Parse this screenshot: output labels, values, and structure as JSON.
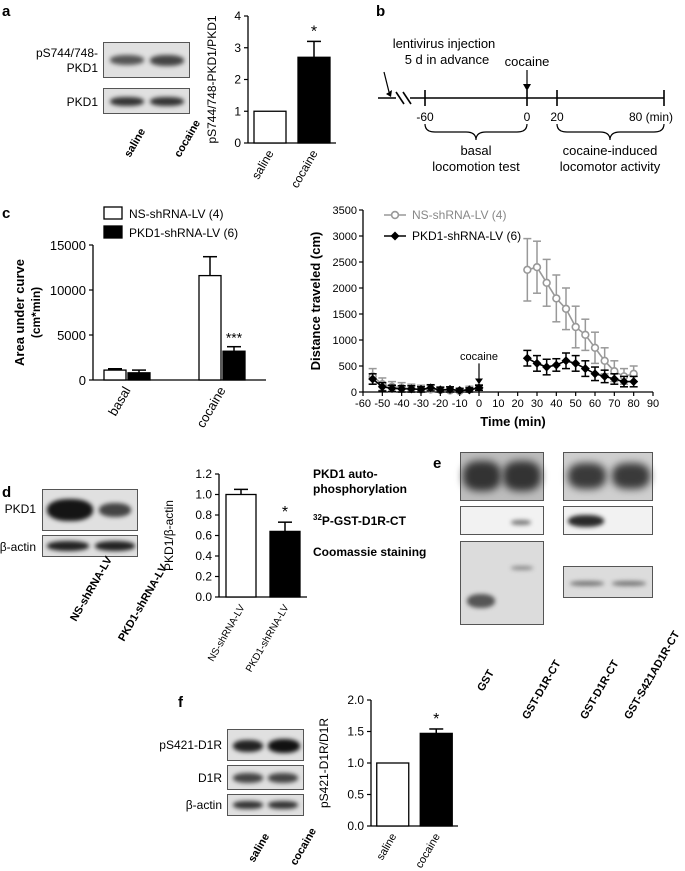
{
  "panels": {
    "a": {
      "label": "a",
      "blot_rows": [
        "pS744/748-\nPKD1",
        "PKD1"
      ],
      "lanes": [
        "saline",
        "cocaine"
      ],
      "chart_data": {
        "type": "bar",
        "categories": [
          "saline",
          "cocaine"
        ],
        "values": [
          1.0,
          2.7
        ],
        "errors": [
          0,
          0.5
        ],
        "ylabel": "pS744/748-PKD1/PKD1",
        "ylim": [
          0,
          4
        ],
        "yticks": [
          0,
          1,
          2,
          3,
          4
        ],
        "significance": [
          "",
          "*"
        ],
        "fills": [
          "#ffffff",
          "#000000"
        ]
      }
    },
    "b": {
      "label": "b",
      "injection": "lentivirus injection\n5 d in advance",
      "cocaine": "cocaine",
      "ticks": [
        "-60",
        "0",
        "20",
        "80 (min)"
      ],
      "phase1": "basal\nlocomotion test",
      "phase2": "cocaine-induced\nlocomotor activity"
    },
    "c": {
      "label": "c",
      "auc_chart": {
        "type": "bar",
        "categories": [
          "basal",
          "cocaine"
        ],
        "series": [
          {
            "name": "NS-shRNA-LV (4)",
            "values": [
              1100,
              11600
            ],
            "errors": [
              150,
              2100
            ],
            "fill": "#ffffff"
          },
          {
            "name": "PKD1-shRNA-LV (6)",
            "values": [
              800,
              3200
            ],
            "errors": [
              300,
              500
            ],
            "fill": "#000000"
          }
        ],
        "ylabel": "Area under curve\n(cm*min)",
        "ylim": [
          0,
          15000
        ],
        "yticks": [
          0,
          5000,
          10000,
          15000
        ],
        "significance": [
          "",
          "***"
        ]
      },
      "time_chart": {
        "type": "line",
        "xlabel": "Time (min)",
        "ylabel": "Distance traveled (cm)",
        "xlim": [
          -60,
          90
        ],
        "ylim": [
          0,
          3500
        ],
        "xticks": [
          -60,
          -50,
          -40,
          -30,
          -20,
          -10,
          0,
          10,
          20,
          30,
          40,
          50,
          60,
          70,
          80,
          90
        ],
        "yticks": [
          0,
          500,
          1000,
          1500,
          2000,
          2500,
          3000,
          3500
        ],
        "annotation": "cocaine",
        "series": [
          {
            "name": "NS-shRNA-LV (4)",
            "color": "#999999",
            "basal_x": [
              -55,
              -50,
              -45,
              -40,
              -35,
              -30,
              -25,
              -20,
              -15,
              -10,
              -5,
              0
            ],
            "basal_y": [
              300,
              150,
              100,
              80,
              60,
              50,
              50,
              40,
              30,
              20,
              50,
              80
            ],
            "basal_err": [
              150,
              120,
              100,
              100,
              90,
              80,
              80,
              60,
              60,
              50,
              60,
              60
            ],
            "x": [
              25,
              30,
              35,
              40,
              45,
              50,
              55,
              60,
              65,
              70,
              75,
              80
            ],
            "y": [
              2350,
              2400,
              2100,
              1800,
              1600,
              1250,
              1100,
              850,
              600,
              400,
              300,
              350
            ],
            "err": [
              600,
              500,
              450,
              450,
              400,
              400,
              300,
              300,
              250,
              200,
              150,
              150
            ]
          },
          {
            "name": "PKD1-shRNA-LV (6)",
            "color": "#000000",
            "basal_x": [
              -55,
              -50,
              -45,
              -40,
              -35,
              -30,
              -25,
              -20,
              -15,
              -10,
              -5,
              0
            ],
            "basal_y": [
              250,
              100,
              70,
              60,
              60,
              50,
              80,
              40,
              50,
              30,
              40,
              80
            ],
            "basal_err": [
              100,
              80,
              60,
              60,
              60,
              50,
              60,
              50,
              50,
              40,
              40,
              50
            ],
            "x": [
              25,
              30,
              35,
              40,
              45,
              50,
              55,
              60,
              65,
              70,
              75,
              80
            ],
            "y": [
              650,
              550,
              480,
              520,
              600,
              550,
              450,
              350,
              300,
              250,
              200,
              200
            ],
            "err": [
              150,
              150,
              150,
              120,
              150,
              150,
              150,
              130,
              120,
              100,
              100,
              100
            ]
          }
        ]
      }
    },
    "d": {
      "label": "d",
      "blot_rows": [
        "PKD1",
        "β-actin"
      ],
      "lanes": [
        "NS-shRNA-LV",
        "PKD1-shRNA-LV"
      ],
      "chart_data": {
        "type": "bar",
        "categories": [
          "NS-shRNA-LV",
          "PKD1-shRNA-LV"
        ],
        "values": [
          1.0,
          0.64
        ],
        "errors": [
          0.05,
          0.09
        ],
        "ylabel": "PKD1/β-actin",
        "ylim": [
          0,
          1.2
        ],
        "yticks": [
          0.0,
          0.2,
          0.4,
          0.6,
          0.8,
          1.0,
          1.2
        ],
        "significance": [
          "",
          "*"
        ],
        "fills": [
          "#ffffff",
          "#000000"
        ]
      }
    },
    "e": {
      "label": "e",
      "row1": "PKD1 auto-\nphosphorylation",
      "row2_sup": "32",
      "row2": "P-GST-D1R-CT",
      "row3": "Coomassie staining",
      "lanes": [
        "GST",
        "GST-D1R-CT",
        "GST-D1R-CT",
        "GST-S421AD1R-CT"
      ]
    },
    "f": {
      "label": "f",
      "blot_rows": [
        "pS421-D1R",
        "D1R",
        "β-actin"
      ],
      "lanes": [
        "saline",
        "cocaine"
      ],
      "chart_data": {
        "type": "bar",
        "categories": [
          "saline",
          "cocaine"
        ],
        "values": [
          1.0,
          1.47
        ],
        "errors": [
          0,
          0.07
        ],
        "ylabel": "pS421-D1R/D1R",
        "ylim": [
          0,
          2.0
        ],
        "yticks": [
          0.0,
          0.5,
          1.0,
          1.5,
          2.0
        ],
        "significance": [
          "",
          "*"
        ],
        "fills": [
          "#ffffff",
          "#000000"
        ]
      }
    }
  }
}
